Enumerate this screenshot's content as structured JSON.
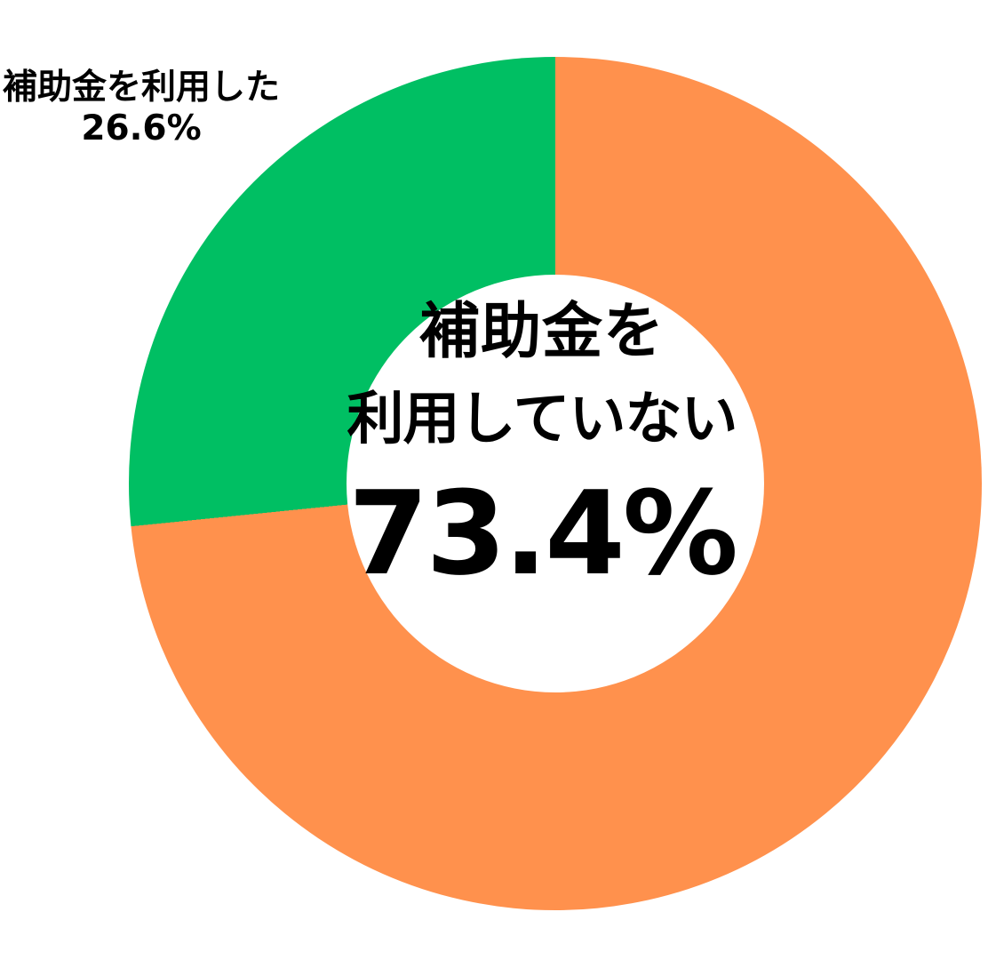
{
  "chart_data": {
    "type": "pie",
    "subtype": "donut",
    "title": "",
    "slices": [
      {
        "label": "補助金を利用していない",
        "value": 73.4,
        "color": "#FF914D"
      },
      {
        "label": "補助金を利用した",
        "value": 26.6,
        "color": "#00BF63"
      }
    ],
    "start_angle_deg": 0,
    "direction": "clockwise",
    "inner_radius_ratio": 0.49,
    "legend": "none",
    "background_color": "#FFFFFF",
    "text_color": "#000000"
  },
  "center_label": {
    "line1": "補助金を",
    "line2": "利用していない",
    "percent": "73.4%"
  },
  "callout_label": {
    "line1": "補助金を利用した",
    "percent": "26.6%"
  }
}
